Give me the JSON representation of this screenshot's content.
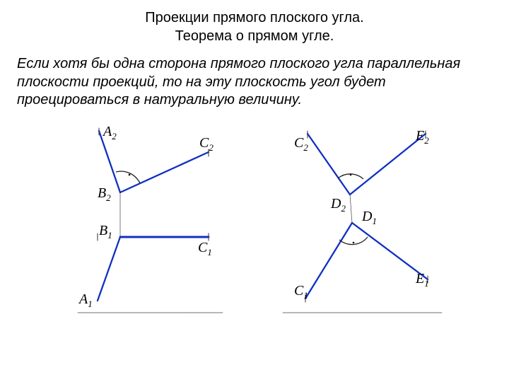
{
  "title_line1": "Проекции прямого плоского угла.",
  "title_line2": "Теорема о прямом угле.",
  "paragraph": "Если хотя бы одна сторона прямого плоского угла параллельная плоскости проекций, то на эту плоскость угол будет проецироваться в натуральную величину.",
  "colors": {
    "line": "#1030c0",
    "thin": "#404040",
    "arc": "#202020",
    "text": "#000000",
    "bg": "#ffffff"
  },
  "stroke": {
    "main": 2.3,
    "thin": 1.1,
    "arc": 1.3
  },
  "labels": {
    "A2": "A",
    "A2s": "2",
    "C2": "C",
    "C2s": "2",
    "B2": "B",
    "B2s": "2",
    "B1": "B",
    "B1s": "1",
    "C1": "C",
    "C1s": "1",
    "A1": "A",
    "A1s": "1",
    "rC2": "C",
    "rC2s": "2",
    "rE2": "E",
    "rE2s": "2",
    "rD2": "D",
    "rD2s": "2",
    "rD1": "D",
    "rD1s": "1",
    "rC1": "C",
    "rC1s": "1",
    "rE1": "E",
    "rE1s": "1"
  },
  "left": {
    "top": {
      "vertex": [
        90,
        105
      ],
      "rayA": [
        60,
        18
      ],
      "rayC": [
        215,
        48
      ],
      "ticks": [
        [
          60,
          14,
          60,
          24
        ],
        [
          215,
          44,
          215,
          54
        ]
      ]
    },
    "bot": {
      "vertex": [
        90,
        168
      ],
      "rayA": [
        58,
        258
      ],
      "rayC": [
        215,
        168
      ],
      "ticks": [
        [
          58,
          163,
          58,
          173
        ],
        [
          215,
          163,
          215,
          173
        ]
      ]
    }
  },
  "right": {
    "top": {
      "vertex": [
        415,
        108
      ],
      "rayC": [
        355,
        22
      ],
      "rayE": [
        522,
        22
      ],
      "ticks": [
        [
          355,
          18,
          355,
          28
        ],
        [
          522,
          18,
          522,
          28
        ]
      ]
    },
    "bot": {
      "vertex": [
        418,
        148
      ],
      "rayC": [
        352,
        255
      ],
      "rayE": [
        525,
        228
      ],
      "ticks": [
        [
          352,
          250,
          352,
          260
        ],
        [
          525,
          223,
          525,
          233
        ]
      ]
    }
  }
}
